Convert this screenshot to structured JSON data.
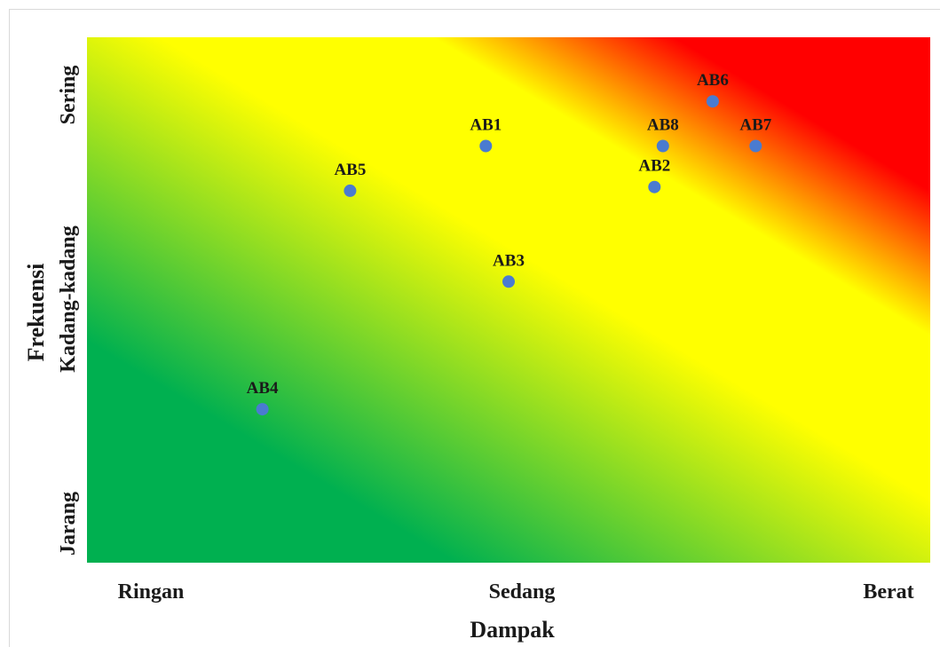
{
  "chart_data": {
    "type": "scatter",
    "title": "",
    "xlabel": "Dampak",
    "ylabel": "Frekuensi",
    "x_tick_labels": [
      "Ringan",
      "Sedang",
      "Berat"
    ],
    "y_tick_labels": [
      "Jarang",
      "Kadang-kadang",
      "Sering"
    ],
    "xlim": [
      0,
      100
    ],
    "ylim": [
      0,
      100
    ],
    "grid": false,
    "legend": "none",
    "background": "risk gradient: green (low) to yellow to red (high), diagonal",
    "colors": {
      "green": "#00b050",
      "yellow": "#ffff00",
      "red": "#ff0000",
      "point": "#4a7bd0"
    },
    "points": [
      {
        "label": "AB1",
        "x": 47.3,
        "y": 79.3
      },
      {
        "label": "AB2",
        "x": 67.3,
        "y": 71.5
      },
      {
        "label": "AB3",
        "x": 50.0,
        "y": 53.5
      },
      {
        "label": "AB4",
        "x": 20.8,
        "y": 29.2
      },
      {
        "label": "AB5",
        "x": 31.2,
        "y": 70.8
      },
      {
        "label": "AB6",
        "x": 74.2,
        "y": 87.8
      },
      {
        "label": "AB7",
        "x": 79.3,
        "y": 79.3
      },
      {
        "label": "AB8",
        "x": 68.3,
        "y": 79.3
      }
    ]
  }
}
